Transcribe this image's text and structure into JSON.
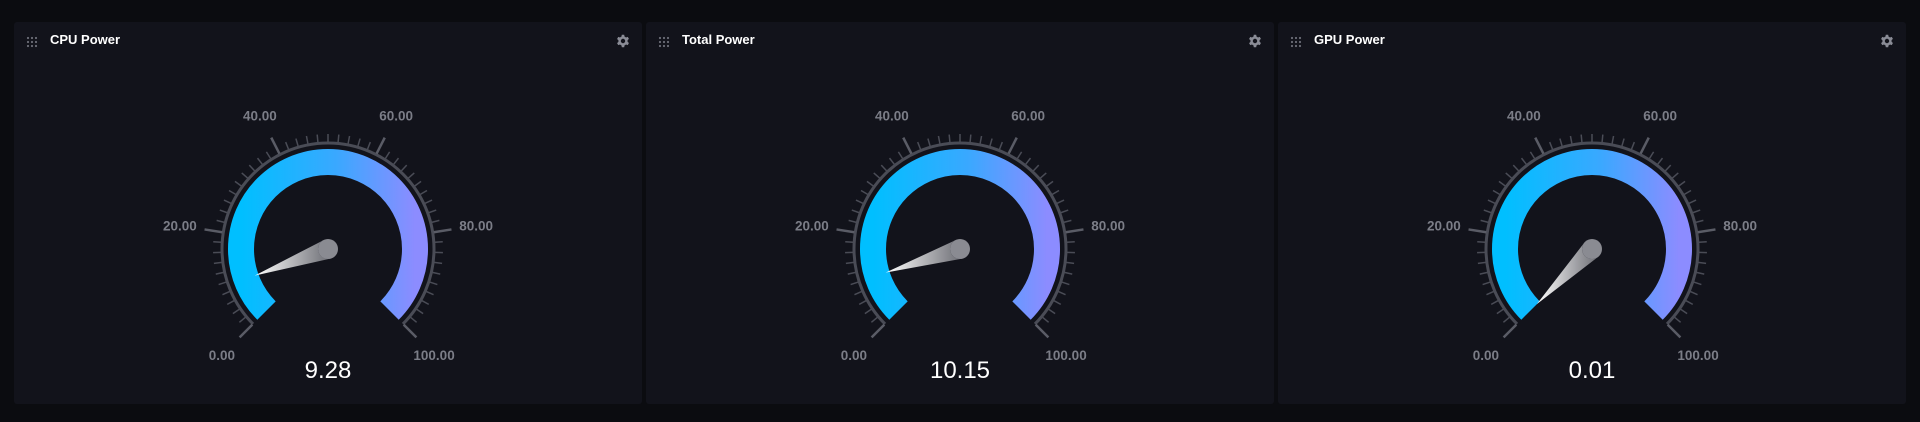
{
  "dashboard": {
    "panels": [
      {
        "title": "CPU Power",
        "value": 9.28,
        "value_label": "9.28",
        "min": 0,
        "max": 100,
        "tick_labels": [
          "0.00",
          "20.00",
          "40.00",
          "60.00",
          "80.00",
          "100.00"
        ],
        "tick_values": [
          0,
          20,
          40,
          60,
          80,
          100
        ]
      },
      {
        "title": "Total Power",
        "value": 10.15,
        "value_label": "10.15",
        "min": 0,
        "max": 100,
        "tick_labels": [
          "0.00",
          "20.00",
          "40.00",
          "60.00",
          "80.00",
          "100.00"
        ],
        "tick_values": [
          0,
          20,
          40,
          60,
          80,
          100
        ]
      },
      {
        "title": "GPU Power",
        "value": 0.01,
        "value_label": "0.01",
        "min": 0,
        "max": 100,
        "tick_labels": [
          "0.00",
          "20.00",
          "40.00",
          "60.00",
          "80.00",
          "100.00"
        ],
        "tick_values": [
          0,
          20,
          40,
          60,
          80,
          100
        ]
      }
    ],
    "icons": {
      "drag": "drag-handle-icon",
      "settings": "gear-icon"
    },
    "colors": {
      "background": "#0b0c10",
      "panel": "#12131b",
      "gauge_start": "#00bfff",
      "gauge_end": "#8c8cff",
      "tick": "#4a4c56",
      "tick_label": "#7b7d87",
      "title": "#ffffff"
    }
  }
}
